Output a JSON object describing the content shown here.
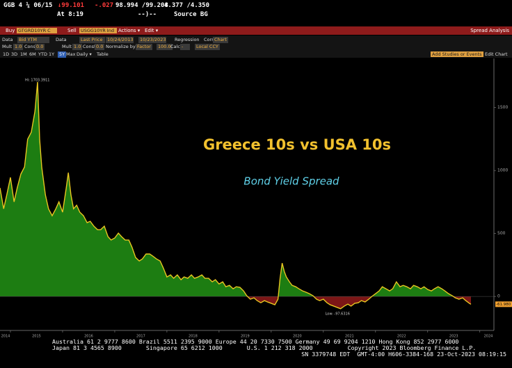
{
  "header": {
    "security": "GGB 4 ¼ 06/15",
    "price": "↓99.101",
    "change": "-.027",
    "bid_ask": "98.994 /99.208",
    "yields": "4.377 /4.350",
    "time": "At 8:19",
    "status": "--)--",
    "source": "Source BG"
  },
  "toolbar": {
    "buy": "Buy",
    "buy_ticker": "GTGRD10YR C",
    "sell": "Sell",
    "sell_ticker": "USGG10YR Ind",
    "actions": "Actions ▾",
    "edit": "Edit ▾",
    "function": "Spread Analysis",
    "data1_label": "Data",
    "data1": "Bid YTM",
    "data2_label": "Data",
    "data2": "Last Price",
    "start_date": "10/24/2013",
    "end_date": "10/23/2023",
    "regression": "Regression",
    "corr": "Corr",
    "chart": "Chart",
    "mult1_label": "Mult",
    "mult1": "1.0",
    "const1_label": "Const",
    "const1": "0.0",
    "mult2_label": "Mult",
    "mult2": "1.0",
    "const2_label": "Const",
    "const2": "0.0",
    "normalize_label": "Normalize by",
    "normalize": "Factor",
    "factor": "100.0",
    "calc_label": "Calc",
    "calc": "-",
    "ccy": "Local CCY",
    "periods": [
      "1D",
      "3D",
      "1M",
      "6M",
      "YTD",
      "1Y",
      "5Y",
      "Max"
    ],
    "frequency": "Daily ▾",
    "table": "Table",
    "studies": "Add Studies or Events",
    "edit_chart": "Edit Chart"
  },
  "chart_data": {
    "type": "area",
    "title": "Greece 10s vs USA 10s",
    "subtitle": "Bond Yield Spread",
    "hi_label": "Hi: 1703.3911",
    "low_label": "Low: -97.6316",
    "last_label": "-61.980",
    "xlim": [
      2014.8,
      2024.27
    ],
    "xticks": [
      2014,
      2015,
      2016,
      2017,
      2018,
      2019,
      2020,
      2021,
      2022,
      2023,
      2024
    ],
    "ylim": [
      -270,
      1890
    ],
    "yticks": [
      0,
      500,
      1000,
      1500
    ],
    "grid": false,
    "x": [
      2014.8,
      2014.87,
      2014.93,
      2015.0,
      2015.07,
      2015.13,
      2015.2,
      2015.27,
      2015.33,
      2015.4,
      2015.47,
      2015.52,
      2015.56,
      2015.6,
      2015.67,
      2015.73,
      2015.8,
      2015.87,
      2015.93,
      2016.0,
      2016.07,
      2016.11,
      2016.16,
      2016.21,
      2016.27,
      2016.33,
      2016.4,
      2016.47,
      2016.53,
      2016.6,
      2016.67,
      2016.73,
      2016.8,
      2016.87,
      2016.93,
      2017.0,
      2017.07,
      2017.13,
      2017.2,
      2017.27,
      2017.33,
      2017.4,
      2017.47,
      2017.53,
      2017.6,
      2017.67,
      2017.73,
      2017.8,
      2017.87,
      2017.93,
      2018.0,
      2018.07,
      2018.13,
      2018.2,
      2018.27,
      2018.33,
      2018.4,
      2018.47,
      2018.53,
      2018.6,
      2018.67,
      2018.73,
      2018.8,
      2018.87,
      2018.93,
      2019.0,
      2019.07,
      2019.13,
      2019.2,
      2019.27,
      2019.33,
      2019.4,
      2019.47,
      2019.53,
      2019.6,
      2019.67,
      2019.73,
      2019.8,
      2019.87,
      2019.93,
      2020.0,
      2020.07,
      2020.13,
      2020.17,
      2020.21,
      2020.25,
      2020.29,
      2020.35,
      2020.4,
      2020.47,
      2020.53,
      2020.6,
      2020.67,
      2020.73,
      2020.8,
      2020.87,
      2020.93,
      2021.0,
      2021.07,
      2021.13,
      2021.2,
      2021.27,
      2021.33,
      2021.4,
      2021.47,
      2021.53,
      2021.6,
      2021.67,
      2021.73,
      2021.8,
      2021.87,
      2021.93,
      2022.0,
      2022.07,
      2022.13,
      2022.2,
      2022.27,
      2022.33,
      2022.4,
      2022.47,
      2022.53,
      2022.6,
      2022.67,
      2022.73,
      2022.8,
      2022.87,
      2022.93,
      2023.0,
      2023.07,
      2023.13,
      2023.2,
      2023.27,
      2023.33,
      2023.4,
      2023.47,
      2023.53,
      2023.6,
      2023.67,
      2023.73,
      2023.8,
      2023.83
    ],
    "series": [
      {
        "fill_above": "#1d7d12",
        "fill_below": "#7c1616",
        "color": "#e8c620",
        "values": [
          862,
          696,
          807,
          945,
          751,
          862,
          972,
          1028,
          1249,
          1304,
          1470,
          1703.39,
          1249,
          1028,
          807,
          696,
          641,
          696,
          751,
          669,
          862,
          983,
          807,
          696,
          724,
          669,
          641,
          586,
          597,
          558,
          530,
          530,
          558,
          475,
          448,
          464,
          503,
          475,
          448,
          448,
          392,
          309,
          282,
          298,
          337,
          337,
          320,
          298,
          282,
          227,
          155,
          171,
          144,
          171,
          133,
          155,
          144,
          171,
          144,
          155,
          171,
          144,
          144,
          116,
          133,
          99,
          116,
          77,
          88,
          61,
          77,
          72,
          44,
          6,
          -22,
          -11,
          -33,
          -50,
          -33,
          -44,
          -55,
          -66,
          -22,
          144,
          265,
          199,
          155,
          116,
          88,
          77,
          61,
          44,
          33,
          22,
          6,
          -22,
          -33,
          -22,
          -50,
          -66,
          -77,
          -88,
          -97.63,
          -77,
          -61,
          -77,
          -55,
          -50,
          -33,
          -44,
          -22,
          0,
          22,
          44,
          77,
          61,
          44,
          61,
          116,
          77,
          88,
          77,
          61,
          88,
          77,
          61,
          77,
          55,
          44,
          61,
          77,
          61,
          44,
          22,
          6,
          -11,
          -22,
          -11,
          -33,
          -55,
          -61.98
        ]
      }
    ]
  },
  "footer": {
    "lines": [
      "Australia 61 2 9777 8600 Brazil 5511 2395 9000 Europe 44 20 7330 7500 Germany 49 69 9204 1210 Hong Kong 852 2977 6000",
      "Japan 81 3 4565 8900       Singapore 65 6212 1000       U.S. 1 212 318 2000          Copyright 2023 Bloomberg Finance L.P.",
      "SN 3379748 EDT  GMT-4:00 H606-3384-168 23-Oct-2023 08:19:15"
    ]
  }
}
